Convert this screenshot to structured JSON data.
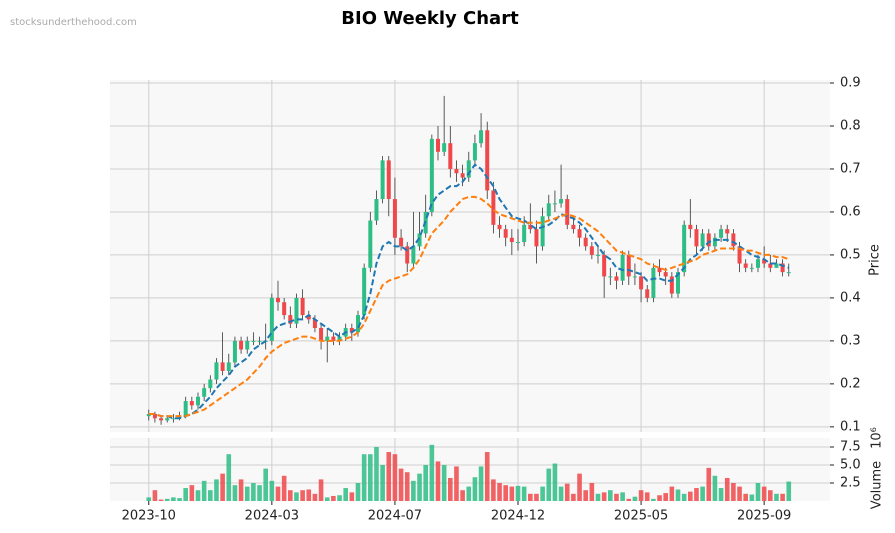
{
  "watermark": "stocksunderthehood.com",
  "chart_data": {
    "type": "candlestick",
    "title": "BIO Weekly Chart",
    "ylabel": "Price",
    "xlim": [
      -6.3,
      110.7
    ],
    "xticks": [
      {
        "value": 0,
        "label": "2023-10"
      },
      {
        "value": 20,
        "label": "2024-03"
      },
      {
        "value": 40,
        "label": "2024-07"
      },
      {
        "value": 60,
        "label": "2024-12"
      },
      {
        "value": 80,
        "label": "2025-05"
      },
      {
        "value": 100,
        "label": "2025-09"
      }
    ],
    "ylim": [
      0.088,
      0.907
    ],
    "yticks": [
      0.1,
      0.2,
      0.3,
      0.4,
      0.5,
      0.6,
      0.7,
      0.8,
      0.9
    ],
    "grid": true,
    "up_color": "#2ebd85",
    "down_color": "#f0484a",
    "wick_color": "#333333",
    "open": [
      0.125,
      0.13,
      0.12,
      0.115,
      0.12,
      0.12,
      0.125,
      0.16,
      0.15,
      0.17,
      0.19,
      0.21,
      0.25,
      0.23,
      0.25,
      0.3,
      0.28,
      0.3,
      0.3,
      0.3,
      0.3,
      0.4,
      0.39,
      0.36,
      0.34,
      0.4,
      0.36,
      0.35,
      0.33,
      0.3,
      0.31,
      0.3,
      0.31,
      0.33,
      0.32,
      0.36,
      0.47,
      0.58,
      0.63,
      0.72,
      0.63,
      0.54,
      0.52,
      0.48,
      0.52,
      0.55,
      0.6,
      0.77,
      0.74,
      0.76,
      0.7,
      0.69,
      0.68,
      0.72,
      0.76,
      0.79,
      0.65,
      0.57,
      0.56,
      0.54,
      0.53,
      0.53,
      0.57,
      0.56,
      0.52,
      0.59,
      0.62,
      0.62,
      0.63,
      0.57,
      0.56,
      0.54,
      0.52,
      0.5,
      0.5,
      0.45,
      0.45,
      0.44,
      0.5,
      0.45,
      0.45,
      0.42,
      0.4,
      0.47,
      0.46,
      0.45,
      0.41,
      0.46,
      0.57,
      0.56,
      0.52,
      0.55,
      0.52,
      0.54,
      0.56,
      0.55,
      0.52,
      0.48,
      0.47,
      0.47,
      0.49,
      0.48,
      0.47,
      0.48,
      0.46
    ],
    "high": [
      0.14,
      0.135,
      0.125,
      0.125,
      0.13,
      0.135,
      0.17,
      0.17,
      0.18,
      0.2,
      0.22,
      0.26,
      0.32,
      0.27,
      0.31,
      0.31,
      0.31,
      0.32,
      0.31,
      0.34,
      0.41,
      0.44,
      0.4,
      0.38,
      0.41,
      0.42,
      0.37,
      0.36,
      0.34,
      0.33,
      0.32,
      0.32,
      0.34,
      0.34,
      0.37,
      0.48,
      0.6,
      0.65,
      0.73,
      0.73,
      0.68,
      0.56,
      0.53,
      0.6,
      0.6,
      0.64,
      0.78,
      0.8,
      0.87,
      0.8,
      0.72,
      0.71,
      0.74,
      0.78,
      0.83,
      0.81,
      0.67,
      0.59,
      0.57,
      0.56,
      0.56,
      0.59,
      0.62,
      0.58,
      0.61,
      0.64,
      0.65,
      0.71,
      0.64,
      0.59,
      0.57,
      0.55,
      0.53,
      0.52,
      0.51,
      0.47,
      0.46,
      0.51,
      0.51,
      0.48,
      0.46,
      0.43,
      0.48,
      0.49,
      0.47,
      0.46,
      0.47,
      0.58,
      0.63,
      0.57,
      0.56,
      0.56,
      0.55,
      0.57,
      0.57,
      0.56,
      0.53,
      0.49,
      0.48,
      0.5,
      0.52,
      0.5,
      0.49,
      0.49,
      0.48
    ],
    "low": [
      0.115,
      0.11,
      0.105,
      0.11,
      0.11,
      0.115,
      0.12,
      0.14,
      0.14,
      0.16,
      0.18,
      0.2,
      0.22,
      0.22,
      0.24,
      0.27,
      0.27,
      0.29,
      0.29,
      0.28,
      0.29,
      0.37,
      0.35,
      0.33,
      0.33,
      0.35,
      0.34,
      0.32,
      0.28,
      0.25,
      0.29,
      0.29,
      0.3,
      0.3,
      0.31,
      0.35,
      0.46,
      0.57,
      0.62,
      0.59,
      0.5,
      0.51,
      0.46,
      0.47,
      0.51,
      0.54,
      0.59,
      0.72,
      0.73,
      0.68,
      0.67,
      0.66,
      0.67,
      0.71,
      0.75,
      0.63,
      0.55,
      0.54,
      0.52,
      0.5,
      0.51,
      0.52,
      0.55,
      0.48,
      0.51,
      0.58,
      0.6,
      0.61,
      0.56,
      0.55,
      0.52,
      0.51,
      0.49,
      0.48,
      0.4,
      0.43,
      0.42,
      0.43,
      0.43,
      0.43,
      0.39,
      0.39,
      0.39,
      0.45,
      0.43,
      0.4,
      0.4,
      0.45,
      0.54,
      0.5,
      0.51,
      0.51,
      0.51,
      0.53,
      0.53,
      0.51,
      0.46,
      0.46,
      0.46,
      0.46,
      0.47,
      0.46,
      0.47,
      0.45,
      0.45
    ],
    "close": [
      0.13,
      0.12,
      0.115,
      0.12,
      0.12,
      0.125,
      0.16,
      0.15,
      0.17,
      0.19,
      0.21,
      0.25,
      0.23,
      0.25,
      0.3,
      0.28,
      0.3,
      0.3,
      0.3,
      0.3,
      0.4,
      0.39,
      0.36,
      0.34,
      0.4,
      0.36,
      0.35,
      0.33,
      0.3,
      0.31,
      0.3,
      0.31,
      0.33,
      0.32,
      0.36,
      0.47,
      0.58,
      0.63,
      0.72,
      0.63,
      0.54,
      0.52,
      0.48,
      0.52,
      0.55,
      0.6,
      0.77,
      0.74,
      0.76,
      0.7,
      0.69,
      0.68,
      0.72,
      0.76,
      0.79,
      0.65,
      0.57,
      0.56,
      0.54,
      0.53,
      0.53,
      0.57,
      0.56,
      0.52,
      0.59,
      0.62,
      0.62,
      0.63,
      0.57,
      0.56,
      0.54,
      0.52,
      0.5,
      0.5,
      0.45,
      0.45,
      0.44,
      0.5,
      0.45,
      0.45,
      0.42,
      0.4,
      0.47,
      0.46,
      0.45,
      0.41,
      0.46,
      0.57,
      0.56,
      0.52,
      0.55,
      0.52,
      0.54,
      0.56,
      0.55,
      0.52,
      0.48,
      0.47,
      0.47,
      0.49,
      0.48,
      0.47,
      0.48,
      0.46,
      0.46
    ],
    "moving_averages": [
      {
        "color": "#1f77b4",
        "values": [
          0.13,
          0.13,
          0.125,
          0.125,
          0.12,
          0.12,
          0.125,
          0.13,
          0.14,
          0.155,
          0.17,
          0.19,
          0.205,
          0.22,
          0.24,
          0.25,
          0.26,
          0.28,
          0.29,
          0.3,
          0.32,
          0.335,
          0.34,
          0.345,
          0.35,
          0.35,
          0.36,
          0.35,
          0.34,
          0.33,
          0.32,
          0.31,
          0.32,
          0.32,
          0.33,
          0.36,
          0.41,
          0.48,
          0.52,
          0.53,
          0.52,
          0.52,
          0.51,
          0.52,
          0.54,
          0.58,
          0.62,
          0.64,
          0.65,
          0.66,
          0.66,
          0.67,
          0.69,
          0.71,
          0.7,
          0.68,
          0.66,
          0.63,
          0.61,
          0.59,
          0.585,
          0.58,
          0.57,
          0.56,
          0.565,
          0.57,
          0.58,
          0.595,
          0.59,
          0.585,
          0.575,
          0.56,
          0.54,
          0.52,
          0.5,
          0.49,
          0.47,
          0.465,
          0.465,
          0.46,
          0.455,
          0.44,
          0.445,
          0.445,
          0.44,
          0.44,
          0.455,
          0.47,
          0.49,
          0.5,
          0.515,
          0.53,
          0.535,
          0.535,
          0.535,
          0.53,
          0.52,
          0.51,
          0.5,
          0.495,
          0.49,
          0.48,
          0.48,
          0.475,
          0.47
        ]
      },
      {
        "color": "#ff7f0e",
        "values": [
          0.13,
          0.13,
          0.125,
          0.125,
          0.125,
          0.125,
          0.125,
          0.13,
          0.135,
          0.14,
          0.15,
          0.16,
          0.17,
          0.18,
          0.19,
          0.2,
          0.21,
          0.225,
          0.24,
          0.26,
          0.275,
          0.285,
          0.295,
          0.3,
          0.305,
          0.31,
          0.31,
          0.305,
          0.3,
          0.3,
          0.3,
          0.3,
          0.305,
          0.31,
          0.32,
          0.34,
          0.37,
          0.4,
          0.43,
          0.44,
          0.445,
          0.45,
          0.455,
          0.47,
          0.49,
          0.52,
          0.55,
          0.565,
          0.58,
          0.6,
          0.615,
          0.63,
          0.635,
          0.635,
          0.63,
          0.62,
          0.605,
          0.595,
          0.59,
          0.585,
          0.58,
          0.575,
          0.575,
          0.575,
          0.575,
          0.58,
          0.585,
          0.59,
          0.595,
          0.59,
          0.585,
          0.575,
          0.565,
          0.555,
          0.54,
          0.525,
          0.51,
          0.505,
          0.5,
          0.495,
          0.49,
          0.48,
          0.475,
          0.47,
          0.465,
          0.47,
          0.475,
          0.48,
          0.485,
          0.49,
          0.5,
          0.505,
          0.51,
          0.515,
          0.515,
          0.515,
          0.515,
          0.51,
          0.51,
          0.505,
          0.5,
          0.5,
          0.495,
          0.495,
          0.49
        ]
      }
    ],
    "volume": {
      "ylabel": "Volume",
      "offset_label": "10⁶",
      "ylim": [
        0,
        8.75
      ],
      "yticks": [
        2.5,
        {
          "value": 5,
          "label": "5.0"
        },
        7.5
      ],
      "values": [
        0.5,
        1.5,
        0.2,
        0.3,
        0.5,
        0.4,
        1.8,
        2.2,
        1.5,
        2.8,
        1.5,
        3.0,
        3.8,
        6.5,
        2.2,
        3.0,
        2.0,
        2.5,
        2.2,
        4.5,
        2.8,
        2.0,
        3.5,
        1.5,
        1.2,
        1.5,
        1.6,
        1.0,
        3.0,
        0.5,
        0.7,
        0.8,
        1.8,
        1.2,
        2.5,
        6.5,
        6.5,
        7.5,
        5.0,
        6.8,
        6.5,
        4.5,
        4.0,
        2.8,
        3.8,
        5.0,
        7.8,
        5.5,
        5.0,
        3.2,
        4.8,
        1.5,
        2.0,
        3.3,
        4.8,
        6.8,
        3.0,
        2.5,
        2.2,
        2.0,
        2.1,
        2.0,
        1.0,
        1.0,
        2.0,
        4.5,
        5.2,
        2.0,
        2.4,
        1.0,
        3.8,
        1.5,
        2.5,
        1.0,
        1.2,
        1.5,
        1.0,
        1.2,
        0.3,
        0.6,
        1.5,
        1.2,
        0.3,
        0.8,
        1.1,
        2.0,
        1.6,
        1.0,
        1.3,
        1.8,
        2.0,
        4.6,
        3.5,
        1.8,
        3.2,
        2.5,
        2.0,
        1.0,
        0.9,
        2.5,
        2.0,
        1.5,
        1.0,
        1.0,
        2.7
      ]
    }
  }
}
